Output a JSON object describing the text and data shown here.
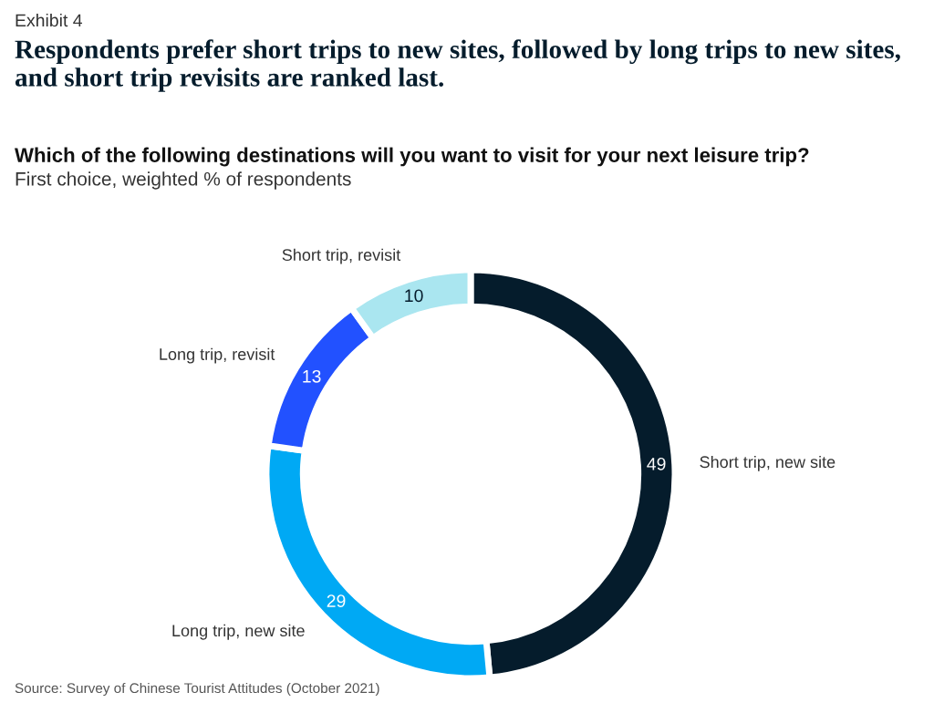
{
  "chart_data": {
    "type": "donut",
    "title": "Respondents prefer short trips to new sites, followed by long trips to new sites,\nand short trip revisits are ranked last.",
    "subtitle": "Which of the following destinations will you want to visit for your next leisure trip?",
    "annotations": [
      "Exhibit 4",
      "First choice, weighted % of respondents",
      "Source: Survey of Chinese Tourist Attitudes (October 2021)"
    ],
    "categories": [
      "Short trip, new site",
      "Long trip, new site",
      "Long trip, revisit",
      "Short trip, revisit"
    ],
    "values": [
      49,
      29,
      13,
      10
    ],
    "colors": [
      "#051c2c",
      "#00a9f4",
      "#2251ff",
      "#aae6f0"
    ],
    "data_labels": true,
    "legend": false
  }
}
